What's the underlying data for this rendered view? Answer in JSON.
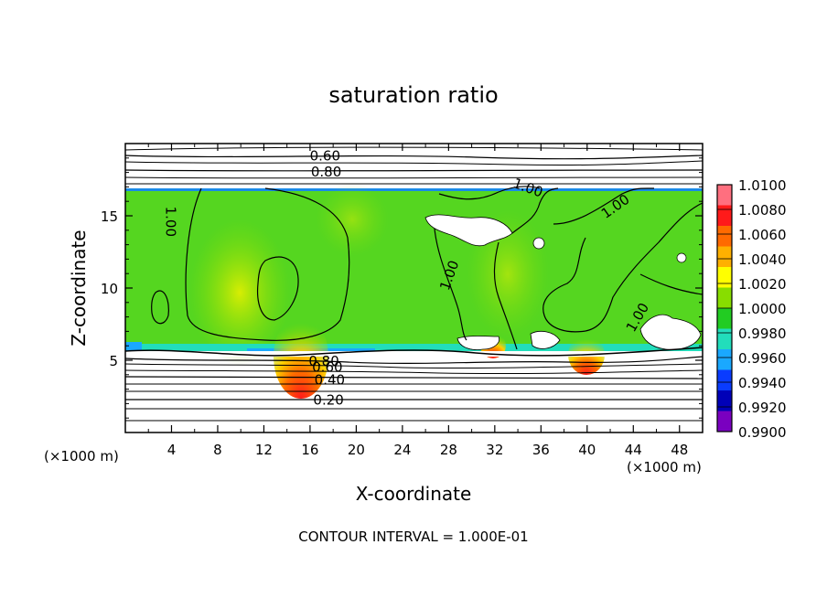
{
  "chart_data": {
    "type": "heatmap",
    "title": "saturation ratio",
    "xlabel": "X-coordinate",
    "ylabel": "Z-coordinate",
    "x_unit": "(×1000 m)",
    "z_unit": "(×1000 m)",
    "xlim": [
      0,
      50
    ],
    "ylim": [
      0,
      20
    ],
    "x_ticks": [
      4,
      8,
      12,
      16,
      20,
      24,
      28,
      32,
      36,
      40,
      44,
      48
    ],
    "y_ticks": [
      5,
      10,
      15
    ],
    "footer": "CONTOUR INTERVAL = 1.000E-01",
    "colorbar": {
      "labels": [
        "1.0100",
        "1.0080",
        "1.0060",
        "1.0040",
        "1.0020",
        "1.0000",
        "0.9980",
        "0.9960",
        "0.9940",
        "0.9920",
        "0.9900"
      ],
      "colors": [
        "#ff6f7f",
        "#ff1a1a",
        "#ff6a00",
        "#ffb000",
        "#ffff00",
        "#88dd00",
        "#22cc22",
        "#22ddbb",
        "#1aa8ff",
        "#0a3cff",
        "#0000b8",
        "#7a00c0"
      ]
    },
    "contour_labels": [
      {
        "text": "0.60",
        "x": 17.3,
        "z": 19.2
      },
      {
        "text": "0.80",
        "x": 17.4,
        "z": 18.1
      },
      {
        "text": "1.00",
        "x": 34.9,
        "z": 17.0
      },
      {
        "text": "1.00",
        "x": 42.4,
        "z": 15.7
      },
      {
        "text": "1.00",
        "x": 4.0,
        "z": 14.6
      },
      {
        "text": "1.00",
        "x": 28.0,
        "z": 10.9
      },
      {
        "text": "1.00",
        "x": 44.3,
        "z": 8.0
      },
      {
        "text": "0.40",
        "x": 17.7,
        "z": 3.7
      },
      {
        "text": "0.20",
        "x": 17.6,
        "z": 2.3
      },
      {
        "text": "0.60",
        "x": 17.5,
        "z": 4.6
      },
      {
        "text": "0.80",
        "x": 17.2,
        "z": 5.0
      }
    ],
    "regions": {
      "saturated_layer": [
        5.5,
        17.0
      ],
      "red_peaks_x": [
        15.5,
        32.0,
        40.0
      ],
      "white_patches": [
        {
          "x": [
            26,
            35
          ],
          "z": [
            14,
            16
          ]
        },
        {
          "x": [
            28,
            33
          ],
          "z": [
            5.5,
            6.5
          ]
        },
        {
          "x": [
            43,
            49
          ],
          "z": [
            5.8,
            8.5
          ]
        }
      ]
    }
  }
}
